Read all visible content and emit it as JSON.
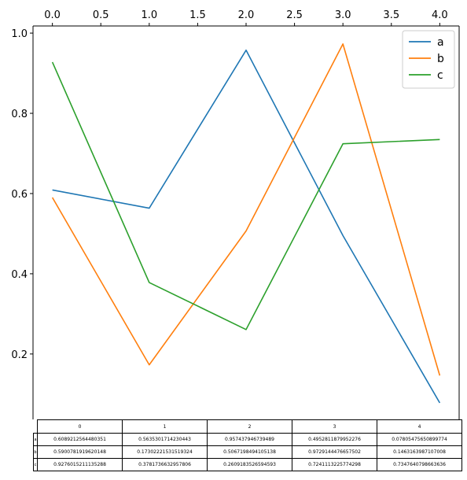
{
  "chart_data": {
    "type": "line",
    "x": [
      0,
      1,
      2,
      3,
      4
    ],
    "series": [
      {
        "name": "a",
        "color": "#1f77b4",
        "values": [
          0.6089212564480351,
          0.5635301714230443,
          0.957437946739489,
          0.4952811879952276,
          0.07805475650899774
        ]
      },
      {
        "name": "b",
        "color": "#ff7f0e",
        "values": [
          0.5900781919620148,
          0.17302221531519324,
          0.5067198494105138,
          0.9729144476657502,
          0.1463163987107008
        ]
      },
      {
        "name": "c",
        "color": "#2ca02c",
        "values": [
          0.9276015211135288,
          0.3781736632957806,
          0.2609183526594593,
          0.7241113225774298,
          0.7347640798663636
        ]
      }
    ],
    "x_ticks": [
      "0.0",
      "0.5",
      "1.0",
      "1.5",
      "2.0",
      "2.5",
      "3.0",
      "3.5",
      "4.0"
    ],
    "y_ticks": [
      "0.2",
      "0.4",
      "0.6",
      "0.8",
      "1.0"
    ],
    "xlim": [
      -0.2,
      4.2
    ],
    "ylim": [
      0.0369,
      1.0178
    ],
    "x_axis_position": "top",
    "legend_position": "upper right",
    "grid": false
  },
  "table": {
    "col_labels": [
      "0",
      "1",
      "2",
      "3",
      "4"
    ],
    "rows": [
      {
        "label": "a",
        "cells": [
          "0.6089212564480351",
          "0.5635301714230443",
          "0.957437946739489",
          "0.4952811879952276",
          "0.07805475650899774"
        ]
      },
      {
        "label": "b",
        "cells": [
          "0.5900781919620148",
          "0.17302221531519324",
          "0.5067198494105138",
          "0.9729144476657502",
          "0.1463163987107008"
        ]
      },
      {
        "label": "c",
        "cells": [
          "0.9276015211135288",
          "0.3781736632957806",
          "0.2609183526594593",
          "0.7241113225774298",
          "0.7347640798663636"
        ]
      }
    ]
  }
}
